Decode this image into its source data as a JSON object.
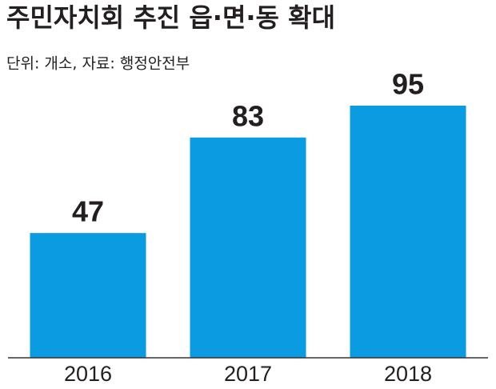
{
  "chart_data": {
    "type": "bar",
    "title": "주민자치회 추진 읍·면·동 확대",
    "subtitle": "단위: 개소, 자료: 행정안전부",
    "categories": [
      "2016",
      "2017",
      "2018"
    ],
    "values": [
      47,
      83,
      95
    ],
    "color": "#0a9be1"
  }
}
